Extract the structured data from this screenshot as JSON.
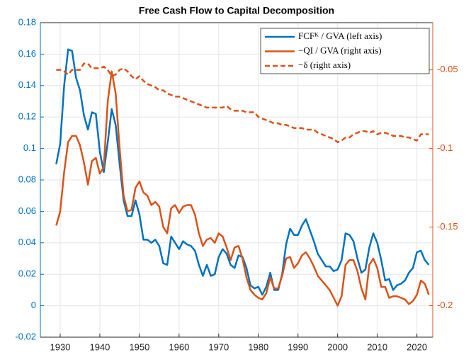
{
  "chart_data": {
    "type": "line",
    "title": "Free Cash Flow to Capital Decomposition",
    "x": [
      1929,
      1930,
      1931,
      1932,
      1933,
      1934,
      1935,
      1936,
      1937,
      1938,
      1939,
      1940,
      1941,
      1942,
      1943,
      1944,
      1945,
      1946,
      1947,
      1948,
      1949,
      1950,
      1951,
      1952,
      1953,
      1954,
      1955,
      1956,
      1957,
      1958,
      1959,
      1960,
      1961,
      1962,
      1963,
      1964,
      1965,
      1966,
      1967,
      1968,
      1969,
      1970,
      1971,
      1972,
      1973,
      1974,
      1975,
      1976,
      1977,
      1978,
      1979,
      1980,
      1981,
      1982,
      1983,
      1984,
      1985,
      1986,
      1987,
      1988,
      1989,
      1990,
      1991,
      1992,
      1993,
      1994,
      1995,
      1996,
      1997,
      1998,
      1999,
      2000,
      2001,
      2002,
      2003,
      2004,
      2005,
      2006,
      2007,
      2008,
      2009,
      2010,
      2011,
      2012,
      2013,
      2014,
      2015,
      2016,
      2017,
      2018,
      2019,
      2020,
      2021,
      2022,
      2023
    ],
    "series": [
      {
        "name": "FCFᴷ / GVA (left axis)",
        "color": "#0072BD",
        "style": "solid",
        "values": [
          0.09,
          0.103,
          0.14,
          0.163,
          0.162,
          0.145,
          0.137,
          0.121,
          0.112,
          0.123,
          0.122,
          0.098,
          0.085,
          0.104,
          0.125,
          0.115,
          0.09,
          0.067,
          0.057,
          0.057,
          0.067,
          0.058,
          0.042,
          0.042,
          0.04,
          0.042,
          0.038,
          0.027,
          0.026,
          0.044,
          0.04,
          0.036,
          0.041,
          0.039,
          0.038,
          0.035,
          0.026,
          0.019,
          0.026,
          0.019,
          0.02,
          0.031,
          0.036,
          0.033,
          0.026,
          0.024,
          0.032,
          0.031,
          0.024,
          0.013,
          0.011,
          0.012,
          0.007,
          0.012,
          0.021,
          0.01,
          0.01,
          0.02,
          0.039,
          0.049,
          0.045,
          0.045,
          0.051,
          0.055,
          0.048,
          0.041,
          0.033,
          0.029,
          0.025,
          0.025,
          0.022,
          0.023,
          0.029,
          0.046,
          0.045,
          0.041,
          0.03,
          0.021,
          0.023,
          0.037,
          0.046,
          0.04,
          0.029,
          0.016,
          0.017,
          0.01,
          0.013,
          0.014,
          0.016,
          0.021,
          0.024,
          0.034,
          0.035,
          0.029,
          0.026
        ]
      },
      {
        "name": "−QI / GVA (right axis)",
        "color": "#D95319",
        "style": "solid",
        "axis": "y2",
        "values": [
          -0.149,
          -0.14,
          -0.115,
          -0.096,
          -0.092,
          -0.092,
          -0.098,
          -0.109,
          -0.123,
          -0.108,
          -0.106,
          -0.116,
          -0.112,
          -0.07,
          -0.051,
          -0.065,
          -0.1,
          -0.13,
          -0.14,
          -0.139,
          -0.125,
          -0.121,
          -0.128,
          -0.13,
          -0.136,
          -0.134,
          -0.137,
          -0.15,
          -0.154,
          -0.138,
          -0.136,
          -0.141,
          -0.137,
          -0.136,
          -0.136,
          -0.142,
          -0.154,
          -0.162,
          -0.158,
          -0.157,
          -0.16,
          -0.154,
          -0.156,
          -0.163,
          -0.171,
          -0.163,
          -0.162,
          -0.17,
          -0.182,
          -0.19,
          -0.193,
          -0.195,
          -0.196,
          -0.192,
          -0.182,
          -0.189,
          -0.189,
          -0.181,
          -0.17,
          -0.169,
          -0.176,
          -0.173,
          -0.168,
          -0.166,
          -0.17,
          -0.175,
          -0.181,
          -0.184,
          -0.187,
          -0.19,
          -0.195,
          -0.2,
          -0.194,
          -0.174,
          -0.171,
          -0.171,
          -0.178,
          -0.189,
          -0.196,
          -0.174,
          -0.17,
          -0.176,
          -0.188,
          -0.188,
          -0.195,
          -0.194,
          -0.194,
          -0.195,
          -0.196,
          -0.199,
          -0.197,
          -0.193,
          -0.184,
          -0.186,
          -0.193
        ]
      },
      {
        "name": "−δ (right axis)",
        "color": "#D95319",
        "style": "dashed",
        "axis": "y2",
        "values": [
          -0.05,
          -0.05,
          -0.051,
          -0.053,
          -0.05,
          -0.05,
          -0.05,
          -0.046,
          -0.046,
          -0.049,
          -0.049,
          -0.049,
          -0.048,
          -0.05,
          -0.054,
          -0.053,
          -0.05,
          -0.049,
          -0.051,
          -0.054,
          -0.056,
          -0.054,
          -0.057,
          -0.059,
          -0.06,
          -0.061,
          -0.063,
          -0.063,
          -0.065,
          -0.066,
          -0.067,
          -0.067,
          -0.068,
          -0.069,
          -0.07,
          -0.071,
          -0.072,
          -0.073,
          -0.074,
          -0.074,
          -0.074,
          -0.074,
          -0.074,
          -0.073,
          -0.075,
          -0.076,
          -0.076,
          -0.076,
          -0.077,
          -0.077,
          -0.077,
          -0.08,
          -0.081,
          -0.082,
          -0.083,
          -0.084,
          -0.084,
          -0.085,
          -0.085,
          -0.086,
          -0.087,
          -0.087,
          -0.087,
          -0.088,
          -0.088,
          -0.088,
          -0.09,
          -0.091,
          -0.092,
          -0.093,
          -0.094,
          -0.096,
          -0.095,
          -0.093,
          -0.093,
          -0.091,
          -0.09,
          -0.089,
          -0.089,
          -0.09,
          -0.089,
          -0.091,
          -0.09,
          -0.09,
          -0.091,
          -0.092,
          -0.092,
          -0.092,
          -0.093,
          -0.093,
          -0.094,
          -0.095,
          -0.091,
          -0.091,
          -0.091
        ]
      }
    ],
    "xlim": [
      1925,
      2024
    ],
    "xticks": [
      1930,
      1940,
      1950,
      1960,
      1970,
      1980,
      1990,
      2000,
      2010,
      2020
    ],
    "ylim": [
      -0.02,
      0.18
    ],
    "yticks": [
      -0.02,
      0,
      0.02,
      0.04,
      0.06,
      0.08,
      0.1,
      0.12,
      0.14,
      0.16,
      0.18
    ],
    "y2lim": [
      -0.22,
      -0.02
    ],
    "y2ticks": [
      -0.2,
      -0.15,
      -0.1,
      -0.05
    ],
    "y_color": "#0072BD",
    "y2_color": "#D95319",
    "grid": true,
    "legend": "northeast"
  }
}
